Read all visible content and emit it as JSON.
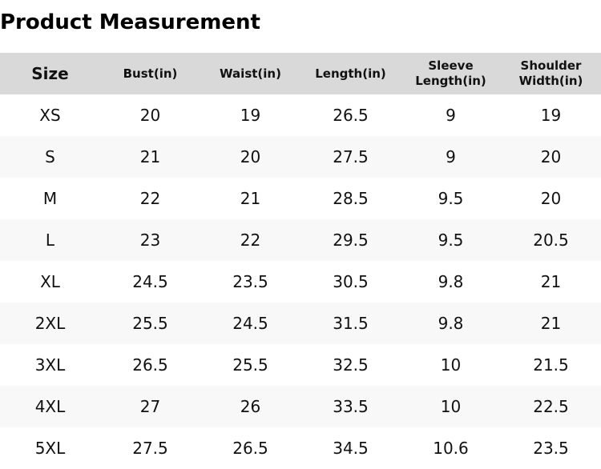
{
  "page": {
    "title": "Product Measurement"
  },
  "table": {
    "columns": [
      "Size",
      "Bust(in)",
      "Waist(in)",
      "Length(in)",
      "Sleeve Length(in)",
      "Shoulder Width(in)"
    ],
    "rows": [
      [
        "XS",
        "20",
        "19",
        "26.5",
        "9",
        "19"
      ],
      [
        "S",
        "21",
        "20",
        "27.5",
        "9",
        "20"
      ],
      [
        "M",
        "22",
        "21",
        "28.5",
        "9.5",
        "20"
      ],
      [
        "L",
        "23",
        "22",
        "29.5",
        "9.5",
        "20.5"
      ],
      [
        "XL",
        "24.5",
        "23.5",
        "30.5",
        "9.8",
        "21"
      ],
      [
        "2XL",
        "25.5",
        "24.5",
        "31.5",
        "9.8",
        "21"
      ],
      [
        "3XL",
        "26.5",
        "25.5",
        "32.5",
        "10",
        "21.5"
      ],
      [
        "4XL",
        "27",
        "26",
        "33.5",
        "10",
        "22.5"
      ],
      [
        "5XL",
        "27.5",
        "26.5",
        "34.5",
        "10.6",
        "23.5"
      ]
    ]
  },
  "colors": {
    "header_background": "#d9d9d9",
    "stripe_background": "#f8f8f8",
    "text": "#111111"
  }
}
